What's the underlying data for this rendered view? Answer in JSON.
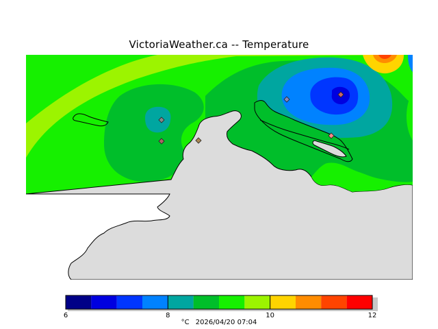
{
  "title": "VictoriaWeather.ca  --  Temperature",
  "colors": {
    "land": "#dcdcdc",
    "coastline": "#000000",
    "background": "#ffffff"
  },
  "colorbar": {
    "min": 6,
    "max": 12,
    "tick_labels": [
      "6",
      "8",
      "10",
      "12"
    ],
    "tick_values": [
      6,
      8,
      10,
      12
    ],
    "bins": [
      {
        "from": 6.0,
        "to": 6.5,
        "color": "#000087"
      },
      {
        "from": 6.5,
        "to": 7.0,
        "color": "#0000e0"
      },
      {
        "from": 7.0,
        "to": 7.5,
        "color": "#0036ff"
      },
      {
        "from": 7.5,
        "to": 8.0,
        "color": "#0082ff"
      },
      {
        "from": 8.0,
        "to": 8.5,
        "color": "#00a6a0"
      },
      {
        "from": 8.5,
        "to": 9.0,
        "color": "#00be2a"
      },
      {
        "from": 9.0,
        "to": 9.5,
        "color": "#16f000"
      },
      {
        "from": 9.5,
        "to": 10.0,
        "color": "#9cf400"
      },
      {
        "from": 10.0,
        "to": 10.5,
        "color": "#ffd400"
      },
      {
        "from": 10.5,
        "to": 11.0,
        "color": "#ff8c00"
      },
      {
        "from": 11.0,
        "to": 11.5,
        "color": "#ff4400"
      },
      {
        "from": 11.5,
        "to": 12.0,
        "color": "#ff0000"
      }
    ]
  },
  "unit_label": "°C",
  "timestamp": "2026/04/20 07:04",
  "stations_count_visible": 6
}
